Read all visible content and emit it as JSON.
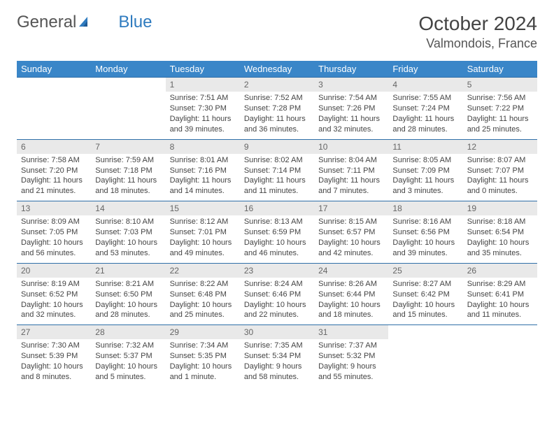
{
  "brand": {
    "part1": "General",
    "part2": "Blue"
  },
  "title": {
    "month": "October 2024",
    "location": "Valmondois, France"
  },
  "colors": {
    "header_bg": "#3a86c8",
    "header_text": "#ffffff",
    "daynum_bg": "#e9e9e9",
    "row_border": "#2f6fa8",
    "brand_blue": "#2f7bbf"
  },
  "dayNames": [
    "Sunday",
    "Monday",
    "Tuesday",
    "Wednesday",
    "Thursday",
    "Friday",
    "Saturday"
  ],
  "weeks": [
    [
      {
        "n": "",
        "sr": "",
        "ss": "",
        "dl": ""
      },
      {
        "n": "",
        "sr": "",
        "ss": "",
        "dl": ""
      },
      {
        "n": "1",
        "sr": "Sunrise: 7:51 AM",
        "ss": "Sunset: 7:30 PM",
        "dl": "Daylight: 11 hours and 39 minutes."
      },
      {
        "n": "2",
        "sr": "Sunrise: 7:52 AM",
        "ss": "Sunset: 7:28 PM",
        "dl": "Daylight: 11 hours and 36 minutes."
      },
      {
        "n": "3",
        "sr": "Sunrise: 7:54 AM",
        "ss": "Sunset: 7:26 PM",
        "dl": "Daylight: 11 hours and 32 minutes."
      },
      {
        "n": "4",
        "sr": "Sunrise: 7:55 AM",
        "ss": "Sunset: 7:24 PM",
        "dl": "Daylight: 11 hours and 28 minutes."
      },
      {
        "n": "5",
        "sr": "Sunrise: 7:56 AM",
        "ss": "Sunset: 7:22 PM",
        "dl": "Daylight: 11 hours and 25 minutes."
      }
    ],
    [
      {
        "n": "6",
        "sr": "Sunrise: 7:58 AM",
        "ss": "Sunset: 7:20 PM",
        "dl": "Daylight: 11 hours and 21 minutes."
      },
      {
        "n": "7",
        "sr": "Sunrise: 7:59 AM",
        "ss": "Sunset: 7:18 PM",
        "dl": "Daylight: 11 hours and 18 minutes."
      },
      {
        "n": "8",
        "sr": "Sunrise: 8:01 AM",
        "ss": "Sunset: 7:16 PM",
        "dl": "Daylight: 11 hours and 14 minutes."
      },
      {
        "n": "9",
        "sr": "Sunrise: 8:02 AM",
        "ss": "Sunset: 7:14 PM",
        "dl": "Daylight: 11 hours and 11 minutes."
      },
      {
        "n": "10",
        "sr": "Sunrise: 8:04 AM",
        "ss": "Sunset: 7:11 PM",
        "dl": "Daylight: 11 hours and 7 minutes."
      },
      {
        "n": "11",
        "sr": "Sunrise: 8:05 AM",
        "ss": "Sunset: 7:09 PM",
        "dl": "Daylight: 11 hours and 3 minutes."
      },
      {
        "n": "12",
        "sr": "Sunrise: 8:07 AM",
        "ss": "Sunset: 7:07 PM",
        "dl": "Daylight: 11 hours and 0 minutes."
      }
    ],
    [
      {
        "n": "13",
        "sr": "Sunrise: 8:09 AM",
        "ss": "Sunset: 7:05 PM",
        "dl": "Daylight: 10 hours and 56 minutes."
      },
      {
        "n": "14",
        "sr": "Sunrise: 8:10 AM",
        "ss": "Sunset: 7:03 PM",
        "dl": "Daylight: 10 hours and 53 minutes."
      },
      {
        "n": "15",
        "sr": "Sunrise: 8:12 AM",
        "ss": "Sunset: 7:01 PM",
        "dl": "Daylight: 10 hours and 49 minutes."
      },
      {
        "n": "16",
        "sr": "Sunrise: 8:13 AM",
        "ss": "Sunset: 6:59 PM",
        "dl": "Daylight: 10 hours and 46 minutes."
      },
      {
        "n": "17",
        "sr": "Sunrise: 8:15 AM",
        "ss": "Sunset: 6:57 PM",
        "dl": "Daylight: 10 hours and 42 minutes."
      },
      {
        "n": "18",
        "sr": "Sunrise: 8:16 AM",
        "ss": "Sunset: 6:56 PM",
        "dl": "Daylight: 10 hours and 39 minutes."
      },
      {
        "n": "19",
        "sr": "Sunrise: 8:18 AM",
        "ss": "Sunset: 6:54 PM",
        "dl": "Daylight: 10 hours and 35 minutes."
      }
    ],
    [
      {
        "n": "20",
        "sr": "Sunrise: 8:19 AM",
        "ss": "Sunset: 6:52 PM",
        "dl": "Daylight: 10 hours and 32 minutes."
      },
      {
        "n": "21",
        "sr": "Sunrise: 8:21 AM",
        "ss": "Sunset: 6:50 PM",
        "dl": "Daylight: 10 hours and 28 minutes."
      },
      {
        "n": "22",
        "sr": "Sunrise: 8:22 AM",
        "ss": "Sunset: 6:48 PM",
        "dl": "Daylight: 10 hours and 25 minutes."
      },
      {
        "n": "23",
        "sr": "Sunrise: 8:24 AM",
        "ss": "Sunset: 6:46 PM",
        "dl": "Daylight: 10 hours and 22 minutes."
      },
      {
        "n": "24",
        "sr": "Sunrise: 8:26 AM",
        "ss": "Sunset: 6:44 PM",
        "dl": "Daylight: 10 hours and 18 minutes."
      },
      {
        "n": "25",
        "sr": "Sunrise: 8:27 AM",
        "ss": "Sunset: 6:42 PM",
        "dl": "Daylight: 10 hours and 15 minutes."
      },
      {
        "n": "26",
        "sr": "Sunrise: 8:29 AM",
        "ss": "Sunset: 6:41 PM",
        "dl": "Daylight: 10 hours and 11 minutes."
      }
    ],
    [
      {
        "n": "27",
        "sr": "Sunrise: 7:30 AM",
        "ss": "Sunset: 5:39 PM",
        "dl": "Daylight: 10 hours and 8 minutes."
      },
      {
        "n": "28",
        "sr": "Sunrise: 7:32 AM",
        "ss": "Sunset: 5:37 PM",
        "dl": "Daylight: 10 hours and 5 minutes."
      },
      {
        "n": "29",
        "sr": "Sunrise: 7:34 AM",
        "ss": "Sunset: 5:35 PM",
        "dl": "Daylight: 10 hours and 1 minute."
      },
      {
        "n": "30",
        "sr": "Sunrise: 7:35 AM",
        "ss": "Sunset: 5:34 PM",
        "dl": "Daylight: 9 hours and 58 minutes."
      },
      {
        "n": "31",
        "sr": "Sunrise: 7:37 AM",
        "ss": "Sunset: 5:32 PM",
        "dl": "Daylight: 9 hours and 55 minutes."
      },
      {
        "n": "",
        "sr": "",
        "ss": "",
        "dl": ""
      },
      {
        "n": "",
        "sr": "",
        "ss": "",
        "dl": ""
      }
    ]
  ]
}
